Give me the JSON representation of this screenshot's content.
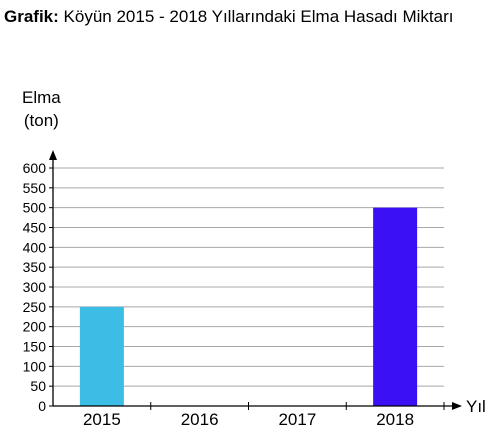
{
  "figure": {
    "caption_prefix": "Grafik:",
    "caption_text": "Köyün 2015 - 2018 Yıllarındaki Elma Hasadı Miktarı"
  },
  "chart_data": {
    "type": "bar",
    "title": "Köyün 2015 - 2018 Yıllarındaki Elma Hasadı Miktarı",
    "ylabel_line1": "Elma",
    "ylabel_line2": "(ton)",
    "xlabel": "Yıl",
    "categories": [
      "2015",
      "2016",
      "2017",
      "2018"
    ],
    "values": [
      250,
      0,
      0,
      500
    ],
    "ylim": [
      0,
      600
    ],
    "yticks": [
      0,
      50,
      100,
      150,
      200,
      250,
      300,
      350,
      400,
      450,
      500,
      550,
      600
    ],
    "grid": true,
    "colors": [
      "#3bbde6",
      "#3bbde6",
      "#3bbde6",
      "#3b10f5"
    ],
    "axis_color": "#000000",
    "grid_color": "#a8a8a8"
  }
}
